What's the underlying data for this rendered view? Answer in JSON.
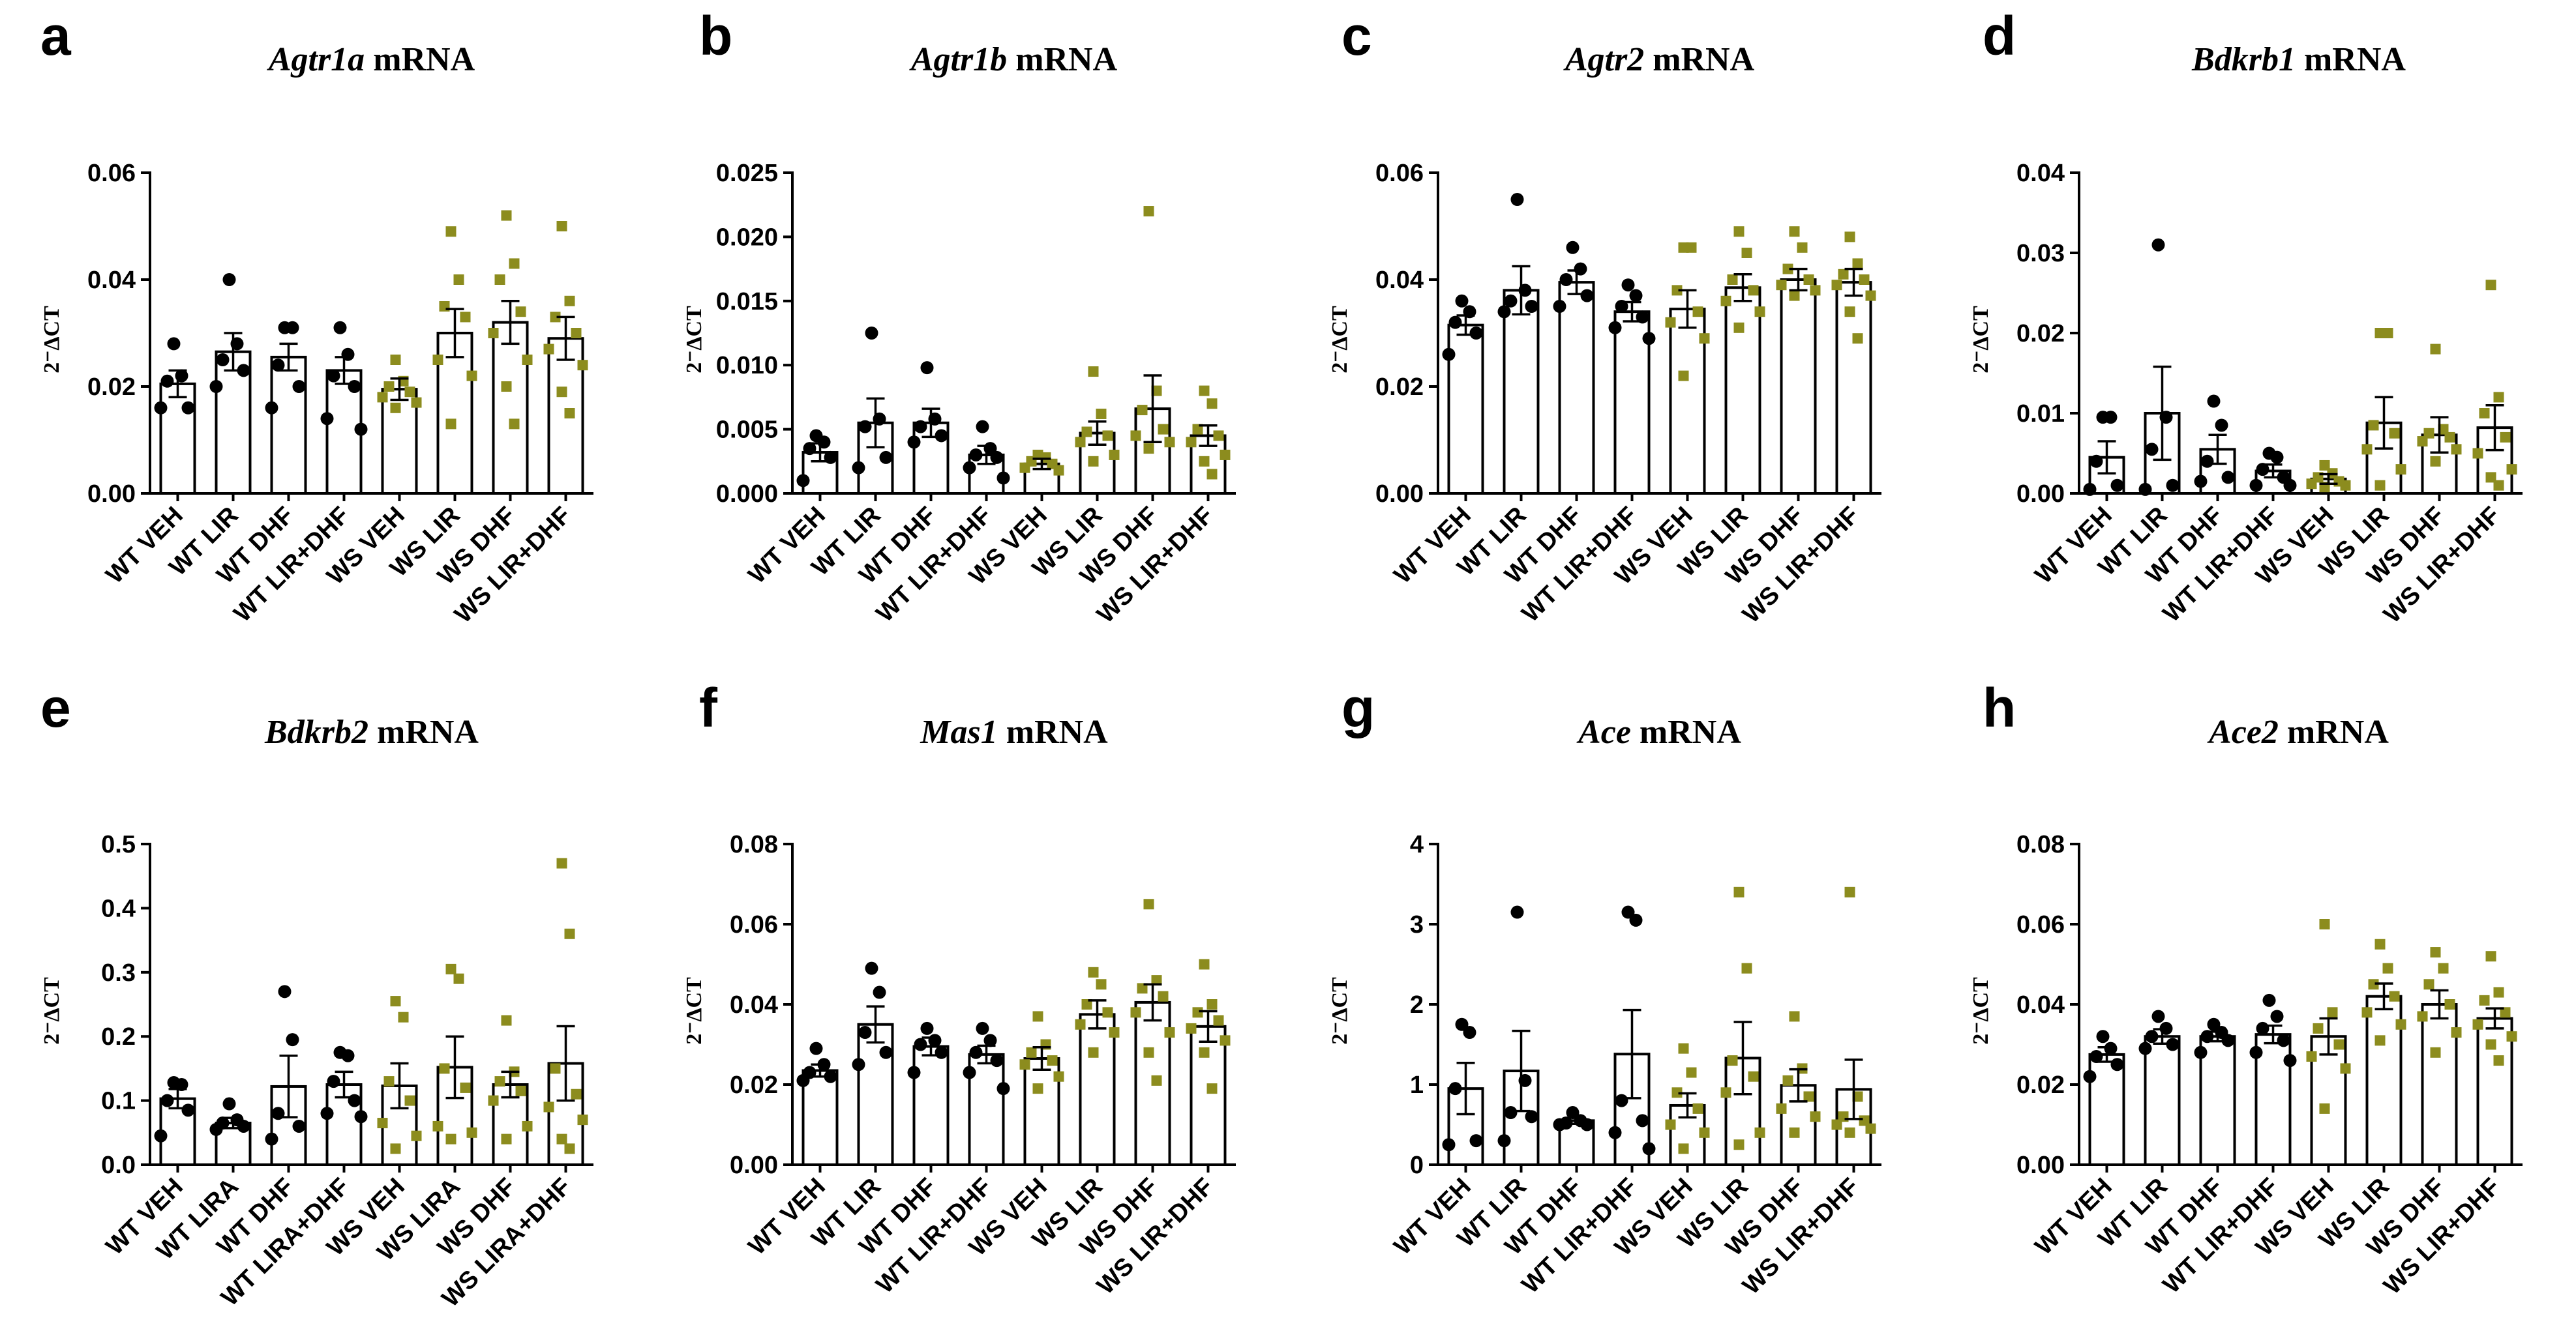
{
  "figure": {
    "colors": {
      "wt": "#000000",
      "ws": "#8c8c1e"
    },
    "marker_shapes": {
      "wt": "circle",
      "ws": "square"
    }
  },
  "chart_data": [
    {
      "type": "bar",
      "panel": "a",
      "gene": "Agtr1a",
      "suffix": " mRNA",
      "ylabel": "2⁻ΔCT",
      "ylim": [
        0,
        0.06
      ],
      "yticks": [
        "0.00",
        "0.02",
        "0.04",
        "0.06"
      ],
      "categories": [
        "WT VEH",
        "WT LIR",
        "WT DHF",
        "WT LIR+DHF",
        "WS VEH",
        "WS LIR",
        "WS DHF",
        "WS LIR+DHF"
      ],
      "values": [
        0.0205,
        0.0265,
        0.0255,
        0.023,
        0.0195,
        0.03,
        0.032,
        0.029
      ],
      "sem": [
        0.0025,
        0.0035,
        0.0025,
        0.0025,
        0.002,
        0.0045,
        0.004,
        0.004
      ],
      "points": [
        [
          0.028,
          0.022,
          0.021,
          0.016,
          0.016
        ],
        [
          0.04,
          0.028,
          0.025,
          0.023,
          0.02
        ],
        [
          0.031,
          0.031,
          0.024,
          0.02,
          0.016
        ],
        [
          0.031,
          0.026,
          0.022,
          0.02,
          0.014,
          0.012
        ],
        [
          0.025,
          0.021,
          0.02,
          0.019,
          0.018,
          0.017,
          0.016
        ],
        [
          0.049,
          0.04,
          0.035,
          0.033,
          0.025,
          0.022,
          0.013
        ],
        [
          0.052,
          0.043,
          0.04,
          0.034,
          0.03,
          0.025,
          0.02,
          0.013
        ],
        [
          0.05,
          0.036,
          0.033,
          0.03,
          0.027,
          0.024,
          0.019,
          0.015
        ]
      ]
    },
    {
      "type": "bar",
      "panel": "b",
      "gene": "Agtr1b",
      "suffix": "  mRNA",
      "ylabel": "2⁻ΔCT",
      "ylim": [
        0,
        0.025
      ],
      "yticks": [
        "0.000",
        "0.005",
        "0.010",
        "0.015",
        "0.020",
        "0.025"
      ],
      "categories": [
        "WT VEH",
        "WT LIR",
        "WT DHF",
        "WT LIR+DHF",
        "WS VEH",
        "WS LIR",
        "WS DHF",
        "WS LIR+DHF"
      ],
      "values": [
        0.0032,
        0.0055,
        0.0055,
        0.003,
        0.0023,
        0.0047,
        0.0066,
        0.0045
      ],
      "sem": [
        0.0007,
        0.0019,
        0.0011,
        0.0007,
        0.0004,
        0.0009,
        0.0026,
        0.0008
      ],
      "points": [
        [
          0.0045,
          0.004,
          0.0035,
          0.0028,
          0.001
        ],
        [
          0.0125,
          0.0058,
          0.0052,
          0.0028,
          0.002
        ],
        [
          0.0098,
          0.0058,
          0.0052,
          0.0045,
          0.004
        ],
        [
          0.0052,
          0.0035,
          0.003,
          0.0028,
          0.002,
          0.0012
        ],
        [
          0.003,
          0.0028,
          0.0025,
          0.0023,
          0.002,
          0.0018
        ],
        [
          0.0095,
          0.0062,
          0.0048,
          0.0045,
          0.004,
          0.003,
          0.0025
        ],
        [
          0.022,
          0.008,
          0.0065,
          0.005,
          0.0045,
          0.004,
          0.0035
        ],
        [
          0.008,
          0.007,
          0.005,
          0.0045,
          0.004,
          0.003,
          0.0025,
          0.0015
        ]
      ]
    },
    {
      "type": "bar",
      "panel": "c",
      "gene": "Agtr2",
      "suffix": " mRNA",
      "ylabel": "2⁻ΔCT",
      "ylim": [
        0,
        0.06
      ],
      "yticks": [
        "0.00",
        "0.02",
        "0.04",
        "0.06"
      ],
      "categories": [
        "WT VEH",
        "WT LIR",
        "WT DHF",
        "WT LIR+DHF",
        "WS VEH",
        "WS LIR",
        "WS DHF",
        "WS LIR+DHF"
      ],
      "values": [
        0.0315,
        0.038,
        0.0395,
        0.034,
        0.0345,
        0.0385,
        0.04,
        0.0395
      ],
      "sem": [
        0.0018,
        0.0045,
        0.0022,
        0.0018,
        0.0035,
        0.0025,
        0.002,
        0.0025
      ],
      "points": [
        [
          0.036,
          0.034,
          0.032,
          0.03,
          0.026
        ],
        [
          0.055,
          0.038,
          0.036,
          0.035,
          0.034
        ],
        [
          0.046,
          0.042,
          0.04,
          0.037,
          0.035
        ],
        [
          0.039,
          0.037,
          0.035,
          0.033,
          0.031,
          0.029
        ],
        [
          0.046,
          0.046,
          0.038,
          0.034,
          0.032,
          0.029,
          0.022
        ],
        [
          0.049,
          0.045,
          0.04,
          0.038,
          0.036,
          0.034,
          0.031
        ],
        [
          0.049,
          0.046,
          0.042,
          0.04,
          0.039,
          0.038,
          0.037
        ],
        [
          0.048,
          0.043,
          0.041,
          0.04,
          0.039,
          0.037,
          0.034,
          0.029
        ]
      ]
    },
    {
      "type": "bar",
      "panel": "d",
      "gene": "Bdkrb1",
      "suffix": " mRNA",
      "ylabel": "2⁻ΔCT",
      "ylim": [
        0,
        0.04
      ],
      "yticks": [
        "0.00",
        "0.01",
        "0.02",
        "0.03",
        "0.04"
      ],
      "categories": [
        "WT VEH",
        "WT LIR",
        "WT DHF",
        "WT LIR+DHF",
        "WS VEH",
        "WS LIR",
        "WS DHF",
        "WS LIR+DHF"
      ],
      "values": [
        0.0045,
        0.01,
        0.0055,
        0.0028,
        0.0018,
        0.0088,
        0.0073,
        0.0082
      ],
      "sem": [
        0.002,
        0.0058,
        0.0018,
        0.0008,
        0.0006,
        0.0032,
        0.0022,
        0.0028
      ],
      "points": [
        [
          0.0095,
          0.0095,
          0.004,
          0.001,
          0.0005
        ],
        [
          0.031,
          0.0095,
          0.0055,
          0.001,
          0.0005
        ],
        [
          0.0115,
          0.0085,
          0.004,
          0.002,
          0.0015
        ],
        [
          0.005,
          0.0045,
          0.003,
          0.002,
          0.001,
          0.001
        ],
        [
          0.0035,
          0.0025,
          0.002,
          0.0015,
          0.0012,
          0.001,
          0.0008
        ],
        [
          0.02,
          0.02,
          0.0085,
          0.0075,
          0.0055,
          0.003,
          0.001
        ],
        [
          0.018,
          0.008,
          0.0075,
          0.007,
          0.0065,
          0.0055,
          0.004
        ],
        [
          0.026,
          0.012,
          0.01,
          0.007,
          0.005,
          0.003,
          0.002,
          0.001
        ]
      ]
    },
    {
      "type": "bar",
      "panel": "e",
      "gene": "Bdkrb2",
      "suffix": " mRNA",
      "ylabel": "2⁻ΔCT",
      "ylim": [
        0,
        0.5
      ],
      "yticks": [
        "0.0",
        "0.1",
        "0.2",
        "0.3",
        "0.4",
        "0.5"
      ],
      "categories": [
        "WT VEH",
        "WT LIRA",
        "WT DHF",
        "WT LIRA+DHF",
        "WS VEH",
        "WS LIRA",
        "WS DHF",
        "WS LIRA+DHF"
      ],
      "values": [
        0.103,
        0.065,
        0.122,
        0.125,
        0.123,
        0.152,
        0.125,
        0.158
      ],
      "sem": [
        0.015,
        0.008,
        0.048,
        0.02,
        0.035,
        0.048,
        0.02,
        0.058
      ],
      "points": [
        [
          0.128,
          0.125,
          0.1,
          0.085,
          0.045
        ],
        [
          0.095,
          0.07,
          0.065,
          0.06,
          0.055
        ],
        [
          0.27,
          0.195,
          0.08,
          0.06,
          0.04
        ],
        [
          0.175,
          0.17,
          0.13,
          0.1,
          0.08,
          0.075
        ],
        [
          0.255,
          0.23,
          0.13,
          0.1,
          0.065,
          0.045,
          0.025
        ],
        [
          0.305,
          0.29,
          0.15,
          0.12,
          0.06,
          0.05,
          0.04
        ],
        [
          0.225,
          0.145,
          0.13,
          0.115,
          0.1,
          0.06,
          0.04
        ],
        [
          0.47,
          0.36,
          0.15,
          0.11,
          0.09,
          0.07,
          0.04,
          0.025
        ]
      ]
    },
    {
      "type": "bar",
      "panel": "f",
      "gene": "Mas1",
      "suffix": " mRNA",
      "ylabel": "2⁻ΔCT",
      "ylim": [
        0,
        0.08
      ],
      "yticks": [
        "0.00",
        "0.02",
        "0.04",
        "0.06",
        "0.08"
      ],
      "categories": [
        "WT VEH",
        "WT LIR",
        "WT DHF",
        "WT LIR+DHF",
        "WS VEH",
        "WS LIR",
        "WS DHF",
        "WS LIR+DHF"
      ],
      "values": [
        0.0235,
        0.035,
        0.0295,
        0.0275,
        0.0265,
        0.0375,
        0.0405,
        0.0345
      ],
      "sem": [
        0.0015,
        0.0045,
        0.0022,
        0.0022,
        0.0028,
        0.0035,
        0.0045,
        0.0038
      ],
      "points": [
        [
          0.029,
          0.025,
          0.023,
          0.022,
          0.021
        ],
        [
          0.049,
          0.043,
          0.033,
          0.028,
          0.025
        ],
        [
          0.034,
          0.031,
          0.03,
          0.028,
          0.023
        ],
        [
          0.034,
          0.031,
          0.028,
          0.026,
          0.023,
          0.019
        ],
        [
          0.037,
          0.03,
          0.028,
          0.026,
          0.025,
          0.022,
          0.019
        ],
        [
          0.048,
          0.045,
          0.04,
          0.038,
          0.035,
          0.033,
          0.028
        ],
        [
          0.065,
          0.046,
          0.044,
          0.042,
          0.038,
          0.033,
          0.028,
          0.021
        ],
        [
          0.05,
          0.04,
          0.038,
          0.036,
          0.034,
          0.031,
          0.028,
          0.019
        ]
      ]
    },
    {
      "type": "bar",
      "panel": "g",
      "gene": "Ace",
      "suffix": " mRNA",
      "ylabel": "2⁻ΔCT",
      "ylim": [
        0,
        4
      ],
      "yticks": [
        "0",
        "1",
        "2",
        "3",
        "4"
      ],
      "categories": [
        "WT VEH",
        "WT LIR",
        "WT DHF",
        "WT LIR+DHF",
        "WS VEH",
        "WS LIR",
        "WS DHF",
        "WS LIR+DHF"
      ],
      "values": [
        0.95,
        1.17,
        0.55,
        1.38,
        0.74,
        1.33,
        0.99,
        0.94
      ],
      "sem": [
        0.32,
        0.5,
        0.04,
        0.55,
        0.15,
        0.45,
        0.2,
        0.37
      ],
      "points": [
        [
          1.75,
          1.65,
          0.95,
          0.3,
          0.25
        ],
        [
          3.15,
          1.05,
          0.65,
          0.6,
          0.3
        ],
        [
          0.65,
          0.55,
          0.52,
          0.5,
          0.5
        ],
        [
          3.15,
          3.05,
          0.8,
          0.55,
          0.4,
          0.2
        ],
        [
          1.45,
          1.15,
          0.9,
          0.7,
          0.5,
          0.4,
          0.2
        ],
        [
          3.4,
          2.45,
          1.3,
          1.1,
          0.9,
          0.4,
          0.25
        ],
        [
          1.85,
          1.2,
          1.05,
          0.85,
          0.7,
          0.6,
          0.4
        ],
        [
          3.4,
          0.85,
          0.6,
          0.55,
          0.5,
          0.45,
          0.4
        ]
      ]
    },
    {
      "type": "bar",
      "panel": "h",
      "gene": "Ace2",
      "suffix": " mRNA",
      "ylabel": "2⁻ΔCT",
      "ylim": [
        0,
        0.08
      ],
      "yticks": [
        "0.00",
        "0.02",
        "0.04",
        "0.06",
        "0.08"
      ],
      "categories": [
        "WT VEH",
        "WT LIR",
        "WT DHF",
        "WT LIR+DHF",
        "WS VEH",
        "WS LIR",
        "WS DHF",
        "WS LIR+DHF"
      ],
      "values": [
        0.0275,
        0.032,
        0.032,
        0.0325,
        0.032,
        0.042,
        0.04,
        0.0365
      ],
      "sem": [
        0.0018,
        0.0018,
        0.0012,
        0.0022,
        0.0045,
        0.0032,
        0.0035,
        0.0025
      ],
      "points": [
        [
          0.032,
          0.029,
          0.027,
          0.025,
          0.022
        ],
        [
          0.037,
          0.034,
          0.032,
          0.03,
          0.029
        ],
        [
          0.035,
          0.033,
          0.032,
          0.031,
          0.028
        ],
        [
          0.041,
          0.037,
          0.034,
          0.031,
          0.028,
          0.026
        ],
        [
          0.06,
          0.038,
          0.034,
          0.03,
          0.027,
          0.024,
          0.014
        ],
        [
          0.055,
          0.049,
          0.045,
          0.042,
          0.038,
          0.035,
          0.031
        ],
        [
          0.053,
          0.049,
          0.045,
          0.04,
          0.037,
          0.033,
          0.028
        ],
        [
          0.052,
          0.043,
          0.041,
          0.038,
          0.035,
          0.032,
          0.03,
          0.026
        ]
      ]
    }
  ]
}
